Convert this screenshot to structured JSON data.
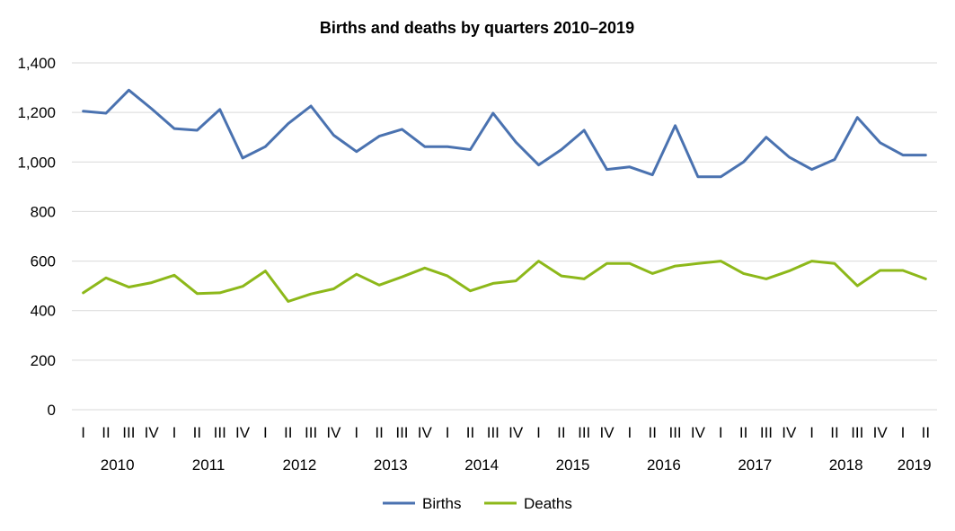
{
  "chart_data": {
    "type": "line",
    "title": "Births and deaths by quarters 2010–2019",
    "xlabel": "",
    "ylabel": "",
    "ylim": [
      0,
      1400
    ],
    "yticks": [
      "0",
      "200",
      "400",
      "600",
      "800",
      "1,000",
      "1,200",
      "1,400"
    ],
    "ytick_values": [
      0,
      200,
      400,
      600,
      800,
      1000,
      1200,
      1400
    ],
    "grid": true,
    "legend_position": "bottom",
    "categories": [
      "I",
      "II",
      "III",
      "IV",
      "I",
      "II",
      "III",
      "IV",
      "I",
      "II",
      "III",
      "IV",
      "I",
      "II",
      "III",
      "IV",
      "I",
      "II",
      "III",
      "IV",
      "I",
      "II",
      "III",
      "IV",
      "I",
      "II",
      "III",
      "IV",
      "I",
      "II",
      "III",
      "IV",
      "I",
      "II",
      "III",
      "IV",
      "I",
      "II"
    ],
    "years": [
      {
        "label": "2010",
        "start": 0,
        "count": 4
      },
      {
        "label": "2011",
        "start": 4,
        "count": 4
      },
      {
        "label": "2012",
        "start": 8,
        "count": 4
      },
      {
        "label": "2013",
        "start": 12,
        "count": 4
      },
      {
        "label": "2014",
        "start": 16,
        "count": 4
      },
      {
        "label": "2015",
        "start": 20,
        "count": 4
      },
      {
        "label": "2016",
        "start": 24,
        "count": 4
      },
      {
        "label": "2017",
        "start": 28,
        "count": 4
      },
      {
        "label": "2018",
        "start": 32,
        "count": 4
      },
      {
        "label": "2019",
        "start": 36,
        "count": 2
      }
    ],
    "series": [
      {
        "name": "Births",
        "color": "#4a72b0",
        "values": [
          1205,
          1197,
          1290,
          1215,
          1135,
          1128,
          1212,
          1016,
          1062,
          1155,
          1226,
          1108,
          1042,
          1104,
          1132,
          1062,
          1062,
          1050,
          1197,
          1080,
          988,
          1050,
          1128,
          970,
          980,
          948,
          1147,
          940,
          940,
          1000,
          1100,
          1020,
          970,
          1010,
          1180,
          1078,
          1028,
          1028
        ]
      },
      {
        "name": "Deaths",
        "color": "#8db81a",
        "values": [
          472,
          532,
          495,
          513,
          543,
          469,
          472,
          498,
          560,
          437,
          467,
          488,
          547,
          503,
          536,
          572,
          540,
          480,
          510,
          520,
          600,
          540,
          528,
          590,
          590,
          550,
          580,
          590,
          600,
          550,
          528,
          560,
          600,
          590,
          500,
          562,
          562,
          528
        ]
      }
    ]
  }
}
